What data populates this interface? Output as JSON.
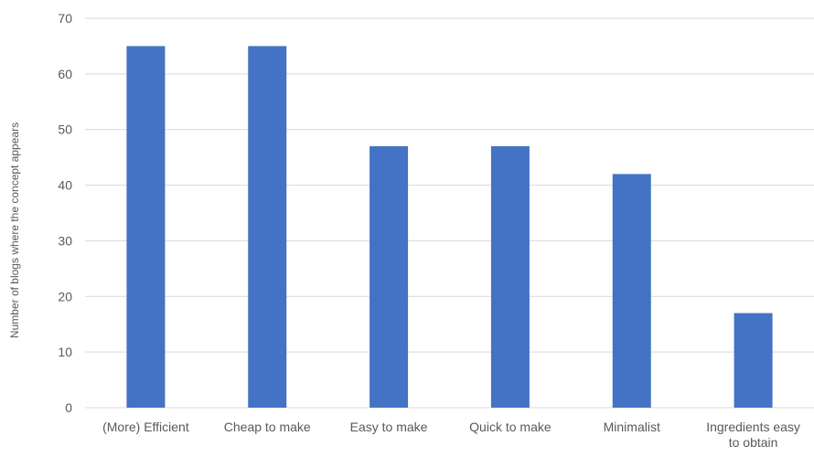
{
  "chart_data": {
    "type": "bar",
    "title": "",
    "xlabel": "",
    "ylabel": "Number of blogs where the concept appears",
    "categories": [
      [
        "(More) Efficient"
      ],
      [
        "Cheap to make"
      ],
      [
        "Easy to make"
      ],
      [
        "Quick to make"
      ],
      [
        "Minimalist"
      ],
      [
        "Ingredients easy",
        "to obtain"
      ]
    ],
    "values": [
      65,
      65,
      47,
      47,
      42,
      17
    ],
    "ylim": [
      0,
      70
    ],
    "yticks": [
      0,
      10,
      20,
      30,
      40,
      50,
      60,
      70
    ],
    "grid": true,
    "legend": "none",
    "colors": {
      "bar": "#4472C4",
      "grid": "#D9D9D9",
      "text": "#595959"
    }
  }
}
